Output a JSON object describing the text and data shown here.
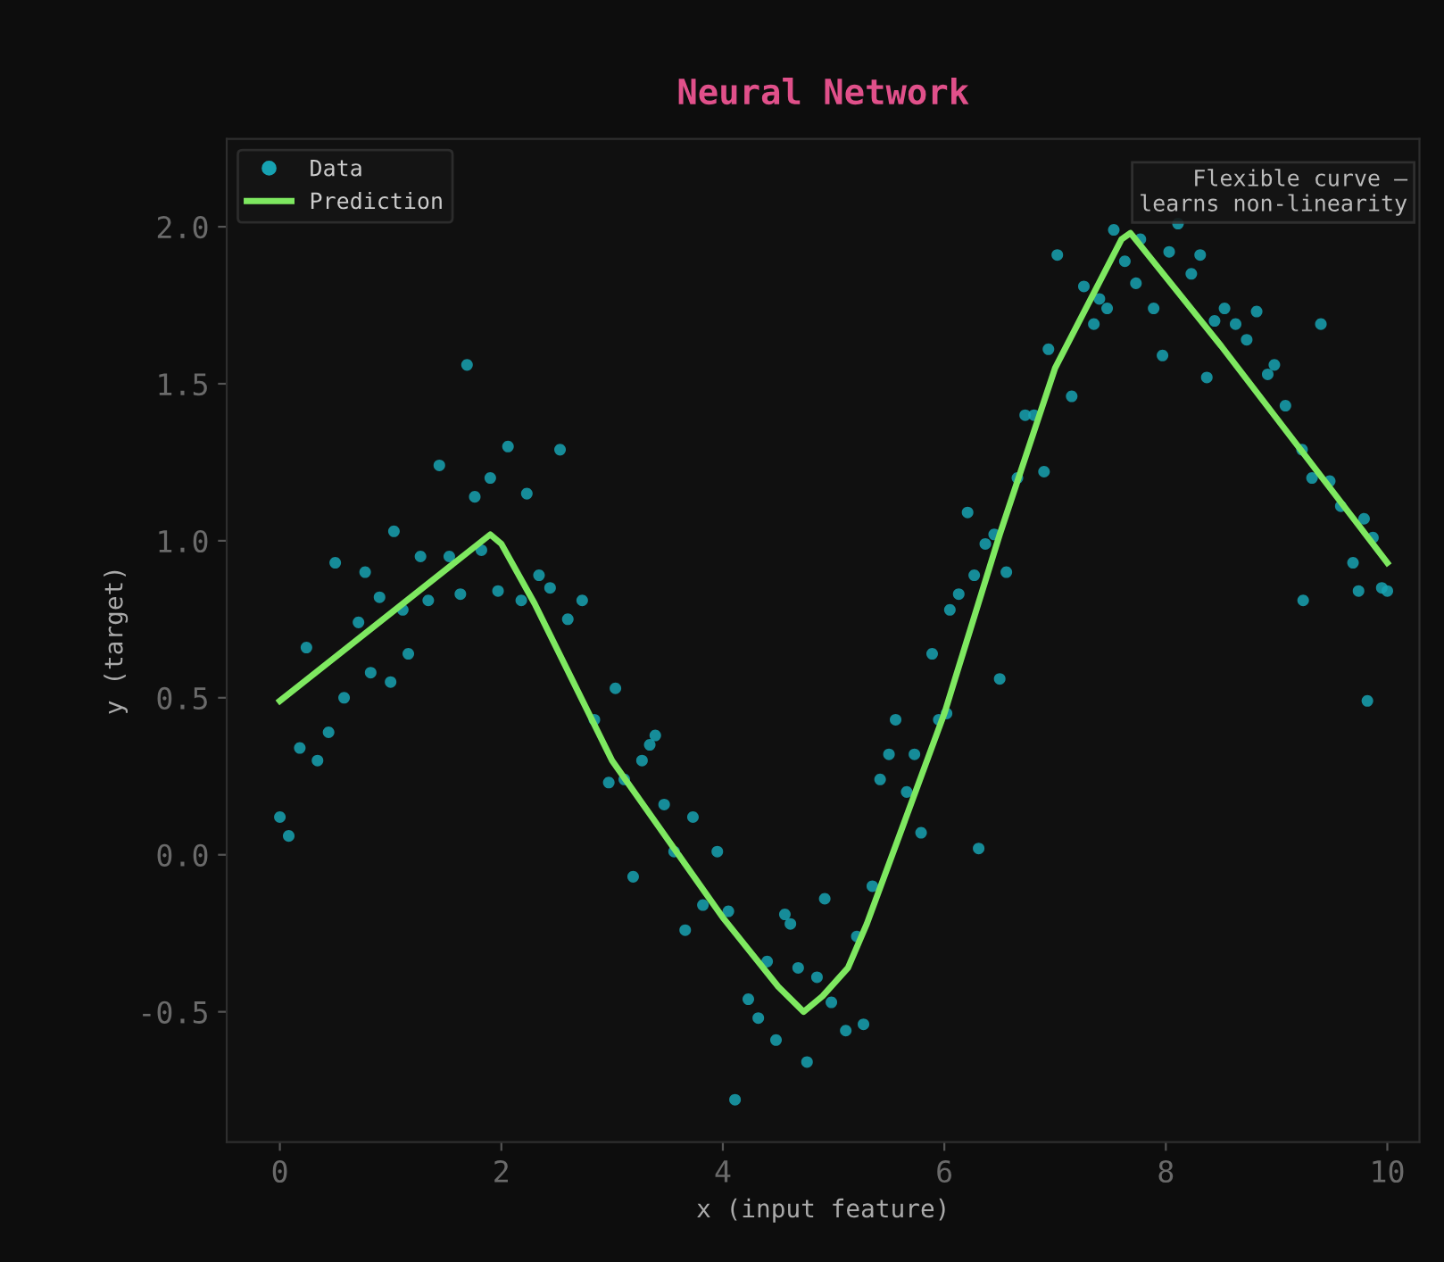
{
  "chart_data": {
    "type": "scatter",
    "title": "Neural Network",
    "xlabel": "x (input feature)",
    "ylabel": "y (target)",
    "xlim": [
      -0.48,
      10.29
    ],
    "ylim": [
      -0.915,
      2.28
    ],
    "xticks": [
      0,
      2,
      4,
      6,
      8,
      10
    ],
    "yticks": [
      -0.5,
      {
        "value": 0,
        "label": "0.0"
      },
      0.5,
      {
        "value": 1,
        "label": "1.0"
      },
      1.5,
      {
        "value": 2,
        "label": "2.0"
      }
    ],
    "grid": false,
    "legend": "top left",
    "marker": "circle",
    "annotations": [
      "Flexible curve —\nlearns non-linearity"
    ],
    "series": [
      {
        "name": "Data",
        "color": "#17a2b2",
        "x": [
          0.0,
          0.08,
          0.18,
          0.24,
          0.34,
          0.44,
          0.5,
          0.58,
          0.71,
          0.77,
          0.82,
          0.9,
          1.0,
          1.03,
          1.11,
          1.16,
          1.27,
          1.34,
          1.44,
          1.53,
          1.63,
          1.69,
          1.76,
          1.82,
          1.9,
          1.97,
          2.06,
          2.18,
          2.23,
          2.34,
          2.44,
          2.53,
          2.6,
          2.73,
          2.84,
          2.97,
          3.03,
          3.11,
          3.19,
          3.27,
          3.34,
          3.39,
          3.47,
          3.56,
          3.66,
          3.73,
          3.82,
          3.95,
          4.05,
          4.11,
          4.23,
          4.32,
          4.4,
          4.48,
          4.56,
          4.61,
          4.68,
          4.76,
          4.85,
          4.92,
          4.98,
          5.11,
          5.21,
          5.27,
          5.35,
          5.42,
          5.5,
          5.56,
          5.66,
          5.73,
          5.79,
          5.89,
          5.95,
          6.02,
          6.05,
          6.13,
          6.21,
          6.27,
          6.31,
          6.37,
          6.45,
          6.5,
          6.56,
          6.66,
          6.73,
          6.81,
          6.9,
          6.94,
          7.02,
          7.15,
          7.26,
          7.35,
          7.4,
          7.47,
          7.53,
          7.63,
          7.73,
          7.77,
          7.89,
          7.97,
          8.03,
          8.11,
          8.23,
          8.31,
          8.37,
          8.44,
          8.53,
          8.63,
          8.73,
          8.82,
          8.92,
          8.98,
          9.08,
          9.23,
          9.24,
          9.32,
          9.4,
          9.48,
          9.58,
          9.69,
          9.74,
          9.79,
          9.82,
          9.87,
          9.95,
          10.0
        ],
        "values": [
          0.12,
          0.06,
          0.34,
          0.66,
          0.3,
          0.39,
          0.93,
          0.5,
          0.74,
          0.9,
          0.58,
          0.82,
          0.55,
          1.03,
          0.78,
          0.64,
          0.95,
          0.81,
          1.24,
          0.95,
          0.83,
          1.56,
          1.14,
          0.97,
          1.2,
          0.84,
          1.3,
          0.81,
          1.15,
          0.89,
          0.85,
          1.29,
          0.75,
          0.81,
          0.43,
          0.23,
          0.53,
          0.24,
          -0.07,
          0.3,
          0.35,
          0.38,
          0.16,
          0.01,
          -0.24,
          0.12,
          -0.16,
          0.01,
          -0.18,
          -0.78,
          -0.46,
          -0.52,
          -0.34,
          -0.59,
          -0.19,
          -0.22,
          -0.36,
          -0.66,
          -0.39,
          -0.14,
          -0.47,
          -0.56,
          -0.26,
          -0.54,
          -0.1,
          0.24,
          0.32,
          0.43,
          0.2,
          0.32,
          0.07,
          0.64,
          0.43,
          0.45,
          0.78,
          0.83,
          1.09,
          0.89,
          0.02,
          0.99,
          1.02,
          0.56,
          0.9,
          1.2,
          1.4,
          1.4,
          1.22,
          1.61,
          1.91,
          1.46,
          1.81,
          1.69,
          1.77,
          1.74,
          1.99,
          1.89,
          1.82,
          1.96,
          1.74,
          1.59,
          1.92,
          2.01,
          1.85,
          1.91,
          1.52,
          1.7,
          1.74,
          1.69,
          1.64,
          1.73,
          1.53,
          1.56,
          1.43,
          1.29,
          0.81,
          1.2,
          1.69,
          1.19,
          1.11,
          0.93,
          0.84,
          1.07,
          0.49,
          1.01,
          0.85,
          0.84
        ]
      },
      {
        "name": "Prediction",
        "type": "line",
        "color": "#7ee860",
        "marker": "none",
        "x": [
          0.0,
          1.9,
          2.0,
          2.3,
          3.0,
          4.0,
          4.5,
          4.73,
          4.9,
          5.13,
          5.3,
          6.0,
          6.5,
          7.0,
          7.6,
          7.68,
          8.5,
          10.0
        ],
        "values": [
          0.49,
          1.02,
          0.99,
          0.8,
          0.3,
          -0.2,
          -0.42,
          -0.5,
          -0.45,
          -0.36,
          -0.22,
          0.45,
          1.02,
          1.55,
          1.96,
          1.98,
          1.62,
          0.93
        ]
      }
    ]
  }
}
